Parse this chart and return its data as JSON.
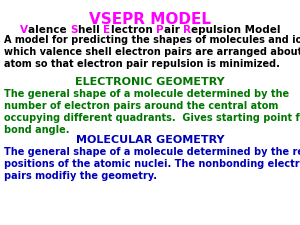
{
  "background_color": "#ffffff",
  "title": "VSEPR MODEL",
  "title_color": "#ff00ff",
  "subtitle_parts": [
    {
      "text": "V",
      "color": "#ff00ff"
    },
    {
      "text": "alence ",
      "color": "#000000"
    },
    {
      "text": "S",
      "color": "#ff00ff"
    },
    {
      "text": "hell ",
      "color": "#000000"
    },
    {
      "text": "E",
      "color": "#ff00ff"
    },
    {
      "text": "lectron ",
      "color": "#000000"
    },
    {
      "text": "P",
      "color": "#ff00ff"
    },
    {
      "text": "air ",
      "color": "#000000"
    },
    {
      "text": "R",
      "color": "#ff00ff"
    },
    {
      "text": "epulsion Model",
      "color": "#000000"
    }
  ],
  "body_text": "A model for predicting the shapes of molecules and ions in\nwhich valence shell electron pairs are arranged about each\natom so that electron pair repulsion is minimized.",
  "body_color": "#000000",
  "section1_title": "ELECTRONIC GEOMETRY",
  "section1_title_color": "#007700",
  "section1_text": "The general shape of a molecule determined by the\nnumber of electron pairs around the central atom\noccupying different quadrants.  Gives starting point for\nbond angle.",
  "section1_text_color": "#007700",
  "section2_title": "MOLECULAR GEOMETRY",
  "section2_title_color": "#0000bb",
  "section2_text": "The general shape of a molecule determined by the relative\npositions of the atomic nuclei. The nonbonding electron\npairs modifiy the geometry.",
  "section2_text_color": "#0000bb",
  "title_fontsize": 11,
  "subtitle_fontsize": 7.5,
  "body_fontsize": 7.0,
  "section_title_fontsize": 8.0,
  "section_text_fontsize": 7.0
}
